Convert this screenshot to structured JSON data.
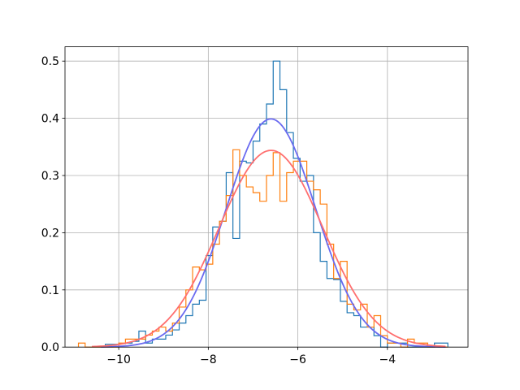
{
  "chart_data": {
    "type": "histogram",
    "title": "",
    "xlabel": "",
    "ylabel": "",
    "xlim": [
      -11.2,
      -2.2
    ],
    "ylim": [
      0,
      0.525
    ],
    "grid": true,
    "legend": "none",
    "xticks": [
      -10,
      -8,
      -6,
      -4
    ],
    "xtick_labels": [
      "−10",
      "−8",
      "−6",
      "−4"
    ],
    "yticks": [
      0.0,
      0.1,
      0.2,
      0.3,
      0.4,
      0.5
    ],
    "ytick_labels": [
      "0.0",
      "0.1",
      "0.2",
      "0.3",
      "0.4",
      "0.5"
    ],
    "series": [
      {
        "kind": "step",
        "color": "#1f77b4",
        "bin_width": 0.15,
        "bins": [
          [
            -10.3,
            0.005
          ],
          [
            -10.15,
            0.005
          ],
          [
            -10.0,
            0.006
          ],
          [
            -9.85,
            0.007
          ],
          [
            -9.7,
            0.01
          ],
          [
            -9.55,
            0.028
          ],
          [
            -9.4,
            0.007
          ],
          [
            -9.25,
            0.014
          ],
          [
            -9.1,
            0.014
          ],
          [
            -8.95,
            0.021
          ],
          [
            -8.8,
            0.03
          ],
          [
            -8.65,
            0.042
          ],
          [
            -8.5,
            0.055
          ],
          [
            -8.35,
            0.075
          ],
          [
            -8.2,
            0.082
          ],
          [
            -8.05,
            0.16
          ],
          [
            -7.9,
            0.21
          ],
          [
            -7.75,
            0.22
          ],
          [
            -7.6,
            0.305
          ],
          [
            -7.45,
            0.19
          ],
          [
            -7.3,
            0.325
          ],
          [
            -7.15,
            0.322
          ],
          [
            -7.0,
            0.36
          ],
          [
            -6.85,
            0.39
          ],
          [
            -6.7,
            0.425
          ],
          [
            -6.55,
            0.5
          ],
          [
            -6.4,
            0.45
          ],
          [
            -6.25,
            0.375
          ],
          [
            -6.1,
            0.33
          ],
          [
            -5.95,
            0.29
          ],
          [
            -5.8,
            0.3
          ],
          [
            -5.65,
            0.2
          ],
          [
            -5.5,
            0.15
          ],
          [
            -5.35,
            0.12
          ],
          [
            -5.2,
            0.118
          ],
          [
            -5.05,
            0.08
          ],
          [
            -4.9,
            0.06
          ],
          [
            -4.75,
            0.055
          ],
          [
            -4.6,
            0.035
          ],
          [
            -4.45,
            0.035
          ],
          [
            -4.3,
            0.02
          ],
          [
            -4.15,
            0.0
          ],
          [
            -4.0,
            0.007
          ],
          [
            -3.85,
            0.007
          ],
          [
            -3.7,
            0.007
          ],
          [
            -3.55,
            0.0
          ],
          [
            -3.4,
            0.0
          ],
          [
            -3.25,
            0.0
          ],
          [
            -3.1,
            0.0
          ],
          [
            -2.95,
            0.007
          ],
          [
            -2.8,
            0.007
          ]
        ]
      },
      {
        "kind": "step",
        "color": "#ff7f0e",
        "bin_width": 0.15,
        "bins": [
          [
            -10.9,
            0.007
          ],
          [
            -10.75,
            0.0
          ],
          [
            -10.6,
            0.0
          ],
          [
            -10.45,
            0.0
          ],
          [
            -10.3,
            0.0
          ],
          [
            -10.15,
            0.0
          ],
          [
            -10.0,
            0.007
          ],
          [
            -9.85,
            0.014
          ],
          [
            -9.7,
            0.014
          ],
          [
            -9.55,
            0.014
          ],
          [
            -9.4,
            0.021
          ],
          [
            -9.25,
            0.028
          ],
          [
            -9.1,
            0.035
          ],
          [
            -8.95,
            0.028
          ],
          [
            -8.8,
            0.042
          ],
          [
            -8.65,
            0.07
          ],
          [
            -8.5,
            0.1
          ],
          [
            -8.35,
            0.14
          ],
          [
            -8.2,
            0.135
          ],
          [
            -8.05,
            0.145
          ],
          [
            -7.9,
            0.18
          ],
          [
            -7.75,
            0.22
          ],
          [
            -7.6,
            0.265
          ],
          [
            -7.45,
            0.345
          ],
          [
            -7.3,
            0.3
          ],
          [
            -7.15,
            0.28
          ],
          [
            -7.0,
            0.27
          ],
          [
            -6.85,
            0.255
          ],
          [
            -6.7,
            0.3
          ],
          [
            -6.55,
            0.34
          ],
          [
            -6.4,
            0.255
          ],
          [
            -6.25,
            0.305
          ],
          [
            -6.1,
            0.325
          ],
          [
            -5.95,
            0.325
          ],
          [
            -5.8,
            0.29
          ],
          [
            -5.65,
            0.275
          ],
          [
            -5.5,
            0.25
          ],
          [
            -5.35,
            0.18
          ],
          [
            -5.2,
            0.12
          ],
          [
            -5.05,
            0.15
          ],
          [
            -4.9,
            0.075
          ],
          [
            -4.75,
            0.065
          ],
          [
            -4.6,
            0.075
          ],
          [
            -4.45,
            0.035
          ],
          [
            -4.3,
            0.055
          ],
          [
            -4.15,
            0.02
          ],
          [
            -4.0,
            0.007
          ],
          [
            -3.85,
            0.007
          ],
          [
            -3.7,
            0.0
          ],
          [
            -3.55,
            0.014
          ],
          [
            -3.4,
            0.007
          ],
          [
            -3.25,
            0.007
          ],
          [
            -3.1,
            0.0
          ],
          [
            -2.95,
            0.0
          ],
          [
            -2.8,
            0.0
          ]
        ]
      },
      {
        "kind": "normal_curve",
        "color": "#6a6af0",
        "mean": -6.6,
        "std": 1.0,
        "x_range": [
          -10.4,
          -2.7
        ]
      },
      {
        "kind": "normal_curve",
        "color": "#ff6f6f",
        "mean": -6.6,
        "std": 1.16,
        "x_range": [
          -10.6,
          -2.7
        ]
      }
    ]
  }
}
